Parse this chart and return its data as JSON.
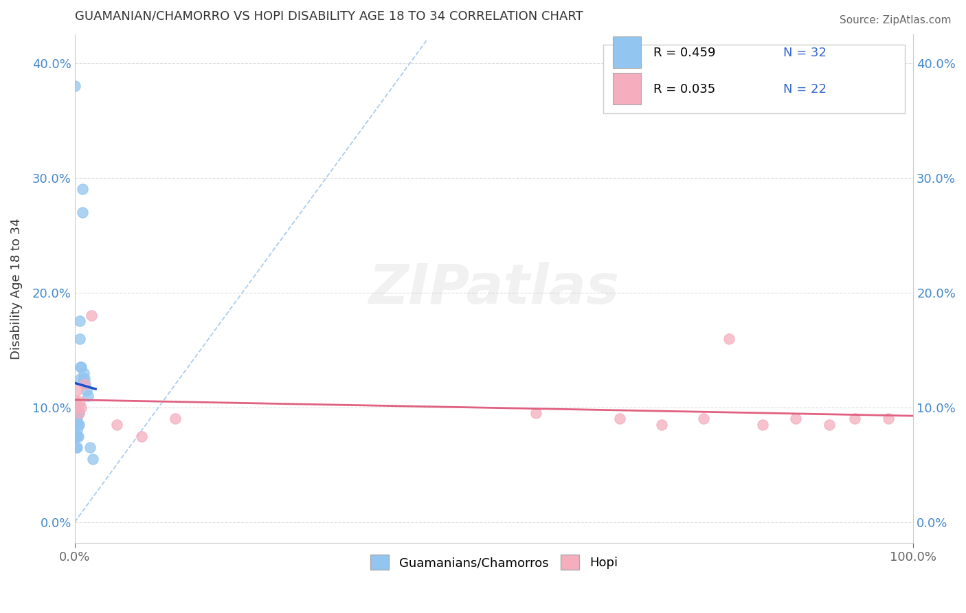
{
  "title": "GUAMANIAN/CHAMORRO VS HOPI DISABILITY AGE 18 TO 34 CORRELATION CHART",
  "source": "Source: ZipAtlas.com",
  "ylabel": "Disability Age 18 to 34",
  "xlim": [
    0.0,
    1.0
  ],
  "ylim": [
    -0.018,
    0.425
  ],
  "xticks": [
    0.0,
    1.0
  ],
  "xtick_labels": [
    "0.0%",
    "100.0%"
  ],
  "yticks": [
    0.0,
    0.1,
    0.2,
    0.3,
    0.4
  ],
  "ytick_labels": [
    "0.0%",
    "10.0%",
    "20.0%",
    "30.0%",
    "40.0%"
  ],
  "guam_R": 0.459,
  "guam_N": 32,
  "hopi_R": 0.035,
  "hopi_N": 22,
  "guam_color": "#92C5F0",
  "hopi_color": "#F4AEBE",
  "guam_line_color": "#1A4FCC",
  "hopi_line_color": "#E06080",
  "guam_scatter_x": [
    0.0005,
    0.001,
    0.001,
    0.001,
    0.0015,
    0.002,
    0.002,
    0.002,
    0.003,
    0.003,
    0.003,
    0.003,
    0.004,
    0.004,
    0.004,
    0.005,
    0.005,
    0.006,
    0.006,
    0.007,
    0.007,
    0.008,
    0.009,
    0.009,
    0.01,
    0.011,
    0.012,
    0.013,
    0.014,
    0.016,
    0.018,
    0.022
  ],
  "guam_scatter_y": [
    0.38,
    0.09,
    0.085,
    0.075,
    0.095,
    0.09,
    0.075,
    0.065,
    0.09,
    0.08,
    0.075,
    0.065,
    0.095,
    0.085,
    0.075,
    0.095,
    0.085,
    0.175,
    0.16,
    0.135,
    0.125,
    0.135,
    0.29,
    0.27,
    0.125,
    0.13,
    0.125,
    0.12,
    0.115,
    0.11,
    0.065,
    0.055
  ],
  "hopi_scatter_x": [
    0.001,
    0.002,
    0.003,
    0.004,
    0.005,
    0.006,
    0.008,
    0.012,
    0.02,
    0.05,
    0.08,
    0.12,
    0.55,
    0.65,
    0.7,
    0.75,
    0.78,
    0.82,
    0.86,
    0.9,
    0.93,
    0.97
  ],
  "hopi_scatter_y": [
    0.105,
    0.1,
    0.115,
    0.1,
    0.095,
    0.105,
    0.1,
    0.12,
    0.18,
    0.085,
    0.075,
    0.09,
    0.095,
    0.09,
    0.085,
    0.09,
    0.16,
    0.085,
    0.09,
    0.085,
    0.09,
    0.09
  ],
  "ref_line_color": "#AACCEE",
  "watermark_text": "ZIPatlas",
  "background_color": "#FFFFFF",
  "grid_color": "#DDDDDD",
  "title_color": "#333333",
  "label_color_blue": "#4488CC",
  "label_color_dark": "#333333",
  "label_color_gray": "#666666",
  "legend_R_color": "#3366CC",
  "legend_N_color": "#3366CC"
}
